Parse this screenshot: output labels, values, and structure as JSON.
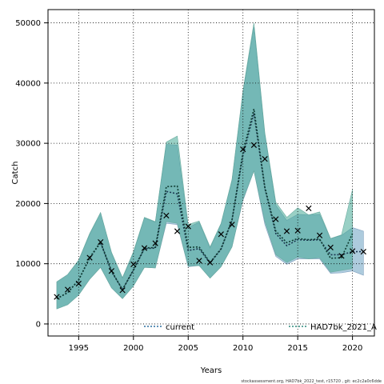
{
  "chart_data": {
    "type": "area",
    "xlabel": "Years",
    "ylabel": "Catch",
    "xlim": [
      1992.2,
      2022.0
    ],
    "ylim": [
      -2000,
      52200
    ],
    "xticks": [
      1995,
      2000,
      2005,
      2010,
      2015,
      2020
    ],
    "yticks": [
      0,
      10000,
      20000,
      30000,
      40000,
      50000
    ],
    "grid": true,
    "legend_position": "bottom",
    "footer": "stockassessment.org, HAD7bk_2022_test, r15720 , git: ec2c2a0c6dde",
    "observed": {
      "marker": "x",
      "x": [
        1993,
        1994,
        1995,
        1996,
        1997,
        1998,
        1999,
        2000,
        2001,
        2002,
        2003,
        2004,
        2005,
        2006,
        2007,
        2008,
        2009,
        2010,
        2011,
        2012,
        2013,
        2014,
        2015,
        2016,
        2017,
        2018,
        2019,
        2020,
        2021
      ],
      "y": [
        4500,
        5700,
        6700,
        11000,
        13600,
        8800,
        5600,
        9900,
        12600,
        13400,
        18000,
        15400,
        16200,
        10500,
        10200,
        14900,
        16500,
        29000,
        29700,
        27400,
        17400,
        15400,
        15500,
        19200,
        14700,
        12700,
        11300,
        12100,
        12000
      ]
    },
    "series": [
      {
        "name": "current",
        "color": "#4a90b8",
        "x": [
          1993,
          1994,
          1995,
          1996,
          1997,
          1998,
          1999,
          2000,
          2001,
          2002,
          2003,
          2004,
          2005,
          2006,
          2007,
          2008,
          2009,
          2010,
          2011,
          2012,
          2013,
          2014,
          2015,
          2016,
          2017,
          2018,
          2019,
          2020,
          2021
        ],
        "y": [
          4200,
          5200,
          7300,
          10900,
          13500,
          8700,
          5700,
          8900,
          12500,
          12600,
          22000,
          21600,
          12200,
          12500,
          10100,
          12400,
          17200,
          28000,
          35000,
          22500,
          15000,
          13000,
          14000,
          13900,
          14000,
          11500,
          11500,
          12000,
          12000
        ],
        "lower": [
          2500,
          3200,
          4800,
          7400,
          9400,
          6000,
          4200,
          6300,
          9400,
          9300,
          16700,
          16500,
          9500,
          9700,
          7600,
          9500,
          12800,
          20500,
          25400,
          16500,
          11200,
          9900,
          10800,
          10800,
          10800,
          8400,
          8500,
          8800,
          8100
        ],
        "upper": [
          7000,
          8200,
          10600,
          14800,
          18500,
          11800,
          7600,
          11800,
          17600,
          16900,
          29800,
          29700,
          16000,
          16900,
          12600,
          16600,
          23800,
          38400,
          49300,
          31300,
          19700,
          17200,
          18200,
          18100,
          18200,
          14200,
          14700,
          16000,
          15400
        ]
      },
      {
        "name": "HAD7bk_2021_A",
        "color": "#5fb8a9",
        "x": [
          1993,
          1994,
          1995,
          1996,
          1997,
          1998,
          1999,
          2000,
          2001,
          2002,
          2003,
          2004,
          2005,
          2006,
          2007,
          2008,
          2009,
          2010,
          2011,
          2012,
          2013,
          2014,
          2015,
          2016,
          2017,
          2018,
          2019,
          2020
        ],
        "y": [
          4200,
          5200,
          7300,
          11000,
          13600,
          8800,
          5700,
          9000,
          12600,
          12700,
          22800,
          22900,
          12700,
          12800,
          10200,
          12500,
          17300,
          28500,
          35700,
          22700,
          15400,
          13500,
          14200,
          14000,
          14100,
          10900,
          11000,
          15000
        ],
        "lower": [
          2500,
          3200,
          4800,
          7400,
          9400,
          6000,
          4200,
          6300,
          9400,
          9300,
          17000,
          16700,
          9600,
          9700,
          7600,
          9500,
          12800,
          20700,
          25400,
          17000,
          11500,
          10200,
          11100,
          10800,
          11000,
          8600,
          8900,
          9200
        ],
        "upper": [
          7000,
          8200,
          10600,
          15000,
          18500,
          11900,
          7700,
          12000,
          17700,
          17000,
          30200,
          31200,
          16500,
          17100,
          12800,
          16700,
          24000,
          38700,
          50000,
          31700,
          20200,
          17700,
          19300,
          18100,
          18600,
          14200,
          14800,
          22300
        ]
      }
    ]
  }
}
